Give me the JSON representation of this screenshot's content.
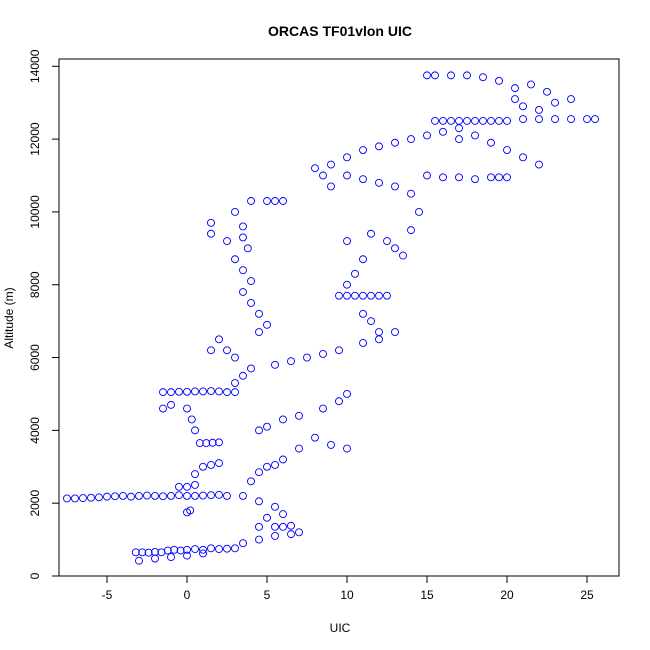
{
  "chart_data": {
    "type": "scatter",
    "title": "ORCAS TF01vlon UIC",
    "xlabel": "UIC",
    "ylabel": "Altitude (m)",
    "xlim": [
      -8,
      27
    ],
    "ylim": [
      0,
      14200
    ],
    "xticks": [
      -5,
      0,
      5,
      10,
      15,
      20,
      25
    ],
    "yticks": [
      0,
      2000,
      4000,
      6000,
      8000,
      10000,
      12000,
      14000
    ],
    "marker_color": "#0000ff",
    "grid": false,
    "legend": "none",
    "series": [
      {
        "points": [
          [
            -3.2,
            650
          ],
          [
            -2.8,
            650
          ],
          [
            -2.4,
            640
          ],
          [
            -2.0,
            660
          ],
          [
            -1.6,
            650
          ],
          [
            -1.2,
            700
          ],
          [
            -0.8,
            720
          ],
          [
            -0.4,
            700
          ],
          [
            0.0,
            720
          ],
          [
            0.5,
            740
          ],
          [
            1.0,
            720
          ],
          [
            1.5,
            760
          ],
          [
            2.0,
            740
          ],
          [
            2.5,
            750
          ],
          [
            3.0,
            760
          ],
          [
            -3.0,
            420
          ],
          [
            -2.0,
            480
          ],
          [
            -1.0,
            520
          ],
          [
            0.0,
            560
          ],
          [
            1.0,
            620
          ],
          [
            3.5,
            900
          ],
          [
            4.5,
            1000
          ],
          [
            5.5,
            1100
          ],
          [
            6.5,
            1150
          ],
          [
            7.0,
            1200
          ],
          [
            4.5,
            1350
          ],
          [
            5.5,
            1350
          ],
          [
            6.0,
            1350
          ],
          [
            6.5,
            1380
          ],
          [
            5.0,
            1600
          ],
          [
            6.0,
            1700
          ],
          [
            5.5,
            1900
          ],
          [
            4.5,
            2050
          ],
          [
            3.5,
            2200
          ],
          [
            2.5,
            2200
          ],
          [
            -7.5,
            2130
          ],
          [
            -7.0,
            2130
          ],
          [
            -6.5,
            2140
          ],
          [
            -6.0,
            2150
          ],
          [
            -5.5,
            2160
          ],
          [
            -5.0,
            2180
          ],
          [
            -4.5,
            2190
          ],
          [
            -4.0,
            2200
          ],
          [
            -3.5,
            2180
          ],
          [
            -3.0,
            2200
          ],
          [
            -2.5,
            2210
          ],
          [
            -2.0,
            2200
          ],
          [
            -1.5,
            2190
          ],
          [
            -1.0,
            2200
          ],
          [
            -0.5,
            2220
          ],
          [
            0.0,
            2200
          ],
          [
            0.5,
            2200
          ],
          [
            1.0,
            2210
          ],
          [
            1.5,
            2220
          ],
          [
            2.0,
            2230
          ],
          [
            0.0,
            1750
          ],
          [
            0.2,
            1800
          ],
          [
            -0.5,
            2450
          ],
          [
            0.0,
            2450
          ],
          [
            0.5,
            2500
          ],
          [
            0.5,
            2800
          ],
          [
            1.0,
            3000
          ],
          [
            1.5,
            3050
          ],
          [
            2.0,
            3100
          ],
          [
            4.0,
            2600
          ],
          [
            4.5,
            2850
          ],
          [
            5.0,
            3000
          ],
          [
            5.5,
            3050
          ],
          [
            6.0,
            3200
          ],
          [
            7.0,
            3500
          ],
          [
            8.0,
            3800
          ],
          [
            9.0,
            3600
          ],
          [
            10.0,
            3500
          ],
          [
            0.8,
            3650
          ],
          [
            1.2,
            3650
          ],
          [
            1.6,
            3660
          ],
          [
            2.0,
            3670
          ],
          [
            0.5,
            4000
          ],
          [
            0.3,
            4300
          ],
          [
            0.0,
            4600
          ],
          [
            -1.5,
            4600
          ],
          [
            -1.0,
            4700
          ],
          [
            4.5,
            4000
          ],
          [
            5.0,
            4100
          ],
          [
            6.0,
            4300
          ],
          [
            7.0,
            4400
          ],
          [
            8.5,
            4600
          ],
          [
            9.5,
            4800
          ],
          [
            10.0,
            5000
          ],
          [
            -1.5,
            5050
          ],
          [
            -1.0,
            5050
          ],
          [
            -0.5,
            5060
          ],
          [
            0.0,
            5060
          ],
          [
            0.5,
            5070
          ],
          [
            1.0,
            5070
          ],
          [
            1.5,
            5080
          ],
          [
            2.0,
            5070
          ],
          [
            2.5,
            5050
          ],
          [
            3.0,
            5050
          ],
          [
            3.0,
            5300
          ],
          [
            3.5,
            5500
          ],
          [
            4.0,
            5700
          ],
          [
            3.0,
            6000
          ],
          [
            2.5,
            6200
          ],
          [
            1.5,
            6200
          ],
          [
            2.0,
            6500
          ],
          [
            5.5,
            5800
          ],
          [
            6.5,
            5900
          ],
          [
            7.5,
            6000
          ],
          [
            8.5,
            6100
          ],
          [
            9.5,
            6200
          ],
          [
            11.0,
            6400
          ],
          [
            12.0,
            6500
          ],
          [
            13.0,
            6700
          ],
          [
            4.5,
            6700
          ],
          [
            5.0,
            6900
          ],
          [
            4.5,
            7200
          ],
          [
            4.0,
            7500
          ],
          [
            3.5,
            7800
          ],
          [
            4.0,
            8100
          ],
          [
            3.5,
            8400
          ],
          [
            3.0,
            8700
          ],
          [
            3.8,
            9000
          ],
          [
            3.5,
            9300
          ],
          [
            3.5,
            9600
          ],
          [
            3.0,
            10000
          ],
          [
            4.0,
            10300
          ],
          [
            5.0,
            10300
          ],
          [
            5.5,
            10300
          ],
          [
            6.0,
            10300
          ],
          [
            2.5,
            9200
          ],
          [
            1.5,
            9400
          ],
          [
            1.5,
            9700
          ],
          [
            9.5,
            7700
          ],
          [
            10.0,
            7700
          ],
          [
            10.5,
            7700
          ],
          [
            11.0,
            7700
          ],
          [
            11.5,
            7700
          ],
          [
            12.0,
            7700
          ],
          [
            12.5,
            7700
          ],
          [
            11.0,
            7200
          ],
          [
            11.5,
            7000
          ],
          [
            12.0,
            6700
          ],
          [
            10.0,
            8000
          ],
          [
            10.5,
            8300
          ],
          [
            11.0,
            8700
          ],
          [
            10.0,
            9200
          ],
          [
            11.5,
            9400
          ],
          [
            12.5,
            9200
          ],
          [
            13.0,
            9000
          ],
          [
            13.5,
            8800
          ],
          [
            14.0,
            9500
          ],
          [
            14.5,
            10000
          ],
          [
            14.0,
            10500
          ],
          [
            13.0,
            10700
          ],
          [
            12.0,
            10800
          ],
          [
            11.0,
            10900
          ],
          [
            10.0,
            11000
          ],
          [
            9.0,
            10700
          ],
          [
            8.5,
            11000
          ],
          [
            8.0,
            11200
          ],
          [
            9.0,
            11300
          ],
          [
            10.0,
            11500
          ],
          [
            11.0,
            11700
          ],
          [
            12.0,
            11800
          ],
          [
            13.0,
            11900
          ],
          [
            14.0,
            12000
          ],
          [
            15.0,
            12100
          ],
          [
            16.0,
            12200
          ],
          [
            17.0,
            12300
          ],
          [
            15.5,
            12500
          ],
          [
            16.0,
            12500
          ],
          [
            16.5,
            12500
          ],
          [
            17.0,
            12500
          ],
          [
            17.5,
            12500
          ],
          [
            18.0,
            12500
          ],
          [
            18.5,
            12500
          ],
          [
            19.0,
            12500
          ],
          [
            19.5,
            12500
          ],
          [
            20.0,
            12500
          ],
          [
            21.0,
            12550
          ],
          [
            22.0,
            12550
          ],
          [
            23.0,
            12550
          ],
          [
            24.0,
            12550
          ],
          [
            25.0,
            12550
          ],
          [
            25.5,
            12550
          ],
          [
            17.0,
            12000
          ],
          [
            18.0,
            12100
          ],
          [
            19.0,
            11900
          ],
          [
            20.0,
            11700
          ],
          [
            21.0,
            11500
          ],
          [
            22.0,
            11300
          ],
          [
            20.0,
            10950
          ],
          [
            19.5,
            10950
          ],
          [
            19.0,
            10950
          ],
          [
            18.0,
            10900
          ],
          [
            17.0,
            10950
          ],
          [
            16.0,
            10950
          ],
          [
            15.0,
            11000
          ],
          [
            22.0,
            12800
          ],
          [
            23.0,
            13000
          ],
          [
            24.0,
            13100
          ],
          [
            22.5,
            13300
          ],
          [
            21.5,
            13500
          ],
          [
            20.5,
            13400
          ],
          [
            19.5,
            13600
          ],
          [
            18.5,
            13700
          ],
          [
            17.5,
            13750
          ],
          [
            16.5,
            13750
          ],
          [
            15.5,
            13750
          ],
          [
            15.0,
            13750
          ],
          [
            20.5,
            13100
          ],
          [
            21.0,
            12900
          ]
        ]
      }
    ]
  }
}
